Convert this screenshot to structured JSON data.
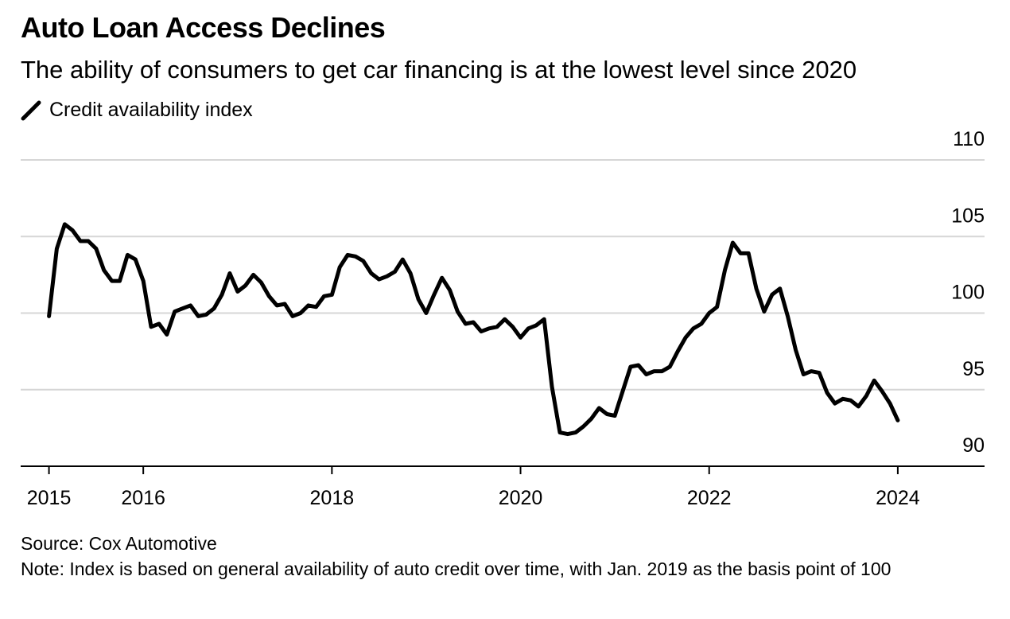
{
  "chart_data": {
    "type": "line",
    "title": "Auto Loan Access Declines",
    "subtitle": "The ability of consumers to get car financing is at the lowest level since 2020",
    "source": "Source: Cox Automotive",
    "note": "Note: Index is based on general availability of auto credit over time, with Jan. 2019 as the basis point of 100",
    "x": [
      2015,
      2015.083,
      2015.167,
      2015.25,
      2015.333,
      2015.417,
      2015.5,
      2015.583,
      2015.667,
      2015.75,
      2015.833,
      2015.917,
      2016,
      2016.083,
      2016.167,
      2016.25,
      2016.333,
      2016.417,
      2016.5,
      2016.583,
      2016.667,
      2016.75,
      2016.833,
      2016.917,
      2017,
      2017.083,
      2017.167,
      2017.25,
      2017.333,
      2017.417,
      2017.5,
      2017.583,
      2017.667,
      2017.75,
      2017.833,
      2017.917,
      2018,
      2018.083,
      2018.167,
      2018.25,
      2018.333,
      2018.417,
      2018.5,
      2018.583,
      2018.667,
      2018.75,
      2018.833,
      2018.917,
      2019,
      2019.083,
      2019.167,
      2019.25,
      2019.333,
      2019.417,
      2019.5,
      2019.583,
      2019.667,
      2019.75,
      2019.833,
      2019.917,
      2020,
      2020.083,
      2020.167,
      2020.25,
      2020.333,
      2020.417,
      2020.5,
      2020.583,
      2020.667,
      2020.75,
      2020.833,
      2020.917,
      2021,
      2021.083,
      2021.167,
      2021.25,
      2021.333,
      2021.417,
      2021.5,
      2021.583,
      2021.667,
      2021.75,
      2021.833,
      2021.917,
      2022,
      2022.083,
      2022.167,
      2022.25,
      2022.333,
      2022.417,
      2022.5,
      2022.583,
      2022.667,
      2022.75,
      2022.833,
      2022.917,
      2023,
      2023.083,
      2023.167,
      2023.25,
      2023.333,
      2023.417,
      2023.5,
      2023.583,
      2023.667,
      2023.75,
      2023.833,
      2023.917,
      2024
    ],
    "series": [
      {
        "name": "Credit availability index",
        "color": "#000000",
        "values": [
          99.8,
          104.2,
          105.8,
          105.4,
          104.7,
          104.7,
          104.2,
          102.8,
          102.1,
          102.1,
          103.8,
          103.5,
          102.1,
          99.1,
          99.3,
          98.6,
          100.1,
          100.3,
          100.5,
          99.8,
          99.9,
          100.3,
          101.2,
          102.6,
          101.4,
          101.8,
          102.5,
          102.0,
          101.1,
          100.5,
          100.6,
          99.8,
          100.0,
          100.5,
          100.4,
          101.1,
          101.2,
          103.0,
          103.8,
          103.7,
          103.4,
          102.6,
          102.2,
          102.4,
          102.7,
          103.5,
          102.6,
          100.9,
          100.0,
          101.2,
          102.3,
          101.5,
          100.1,
          99.3,
          99.4,
          98.8,
          99.0,
          99.1,
          99.6,
          99.1,
          98.4,
          99.0,
          99.2,
          99.6,
          95.2,
          92.2,
          92.1,
          92.2,
          92.6,
          93.1,
          93.8,
          93.4,
          93.3,
          94.9,
          96.5,
          96.6,
          96.0,
          96.2,
          96.2,
          96.5,
          97.5,
          98.4,
          99.0,
          99.3,
          100.0,
          100.4,
          102.8,
          104.6,
          103.9,
          103.9,
          101.6,
          100.1,
          101.2,
          101.6,
          99.8,
          97.6,
          96.0,
          96.2,
          96.1,
          94.8,
          94.1,
          94.4,
          94.3,
          93.9,
          94.6,
          95.6,
          94.9,
          94.1,
          93.0
        ]
      }
    ],
    "xlim": [
      2014.7,
      2024.92
    ],
    "xticks": [
      2015,
      2016,
      2018,
      2020,
      2022,
      2024
    ],
    "ylim": [
      90,
      110
    ],
    "yticks": [
      90,
      95,
      100,
      105,
      110
    ],
    "grid": true
  }
}
